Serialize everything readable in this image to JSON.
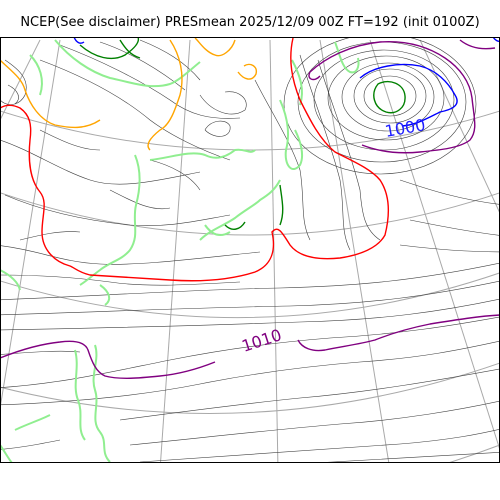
{
  "title": "NCEP(See disclaimer) PRESmean 2025/12/09 00Z FT=192 (init 0100Z)",
  "map": {
    "pressure_labels": [
      {
        "text": "1000",
        "color": "#1f1fff"
      },
      {
        "text": "1010",
        "color": "#800080"
      }
    ],
    "colors": {
      "isobar": "#404040",
      "coast": "#90ee90",
      "graticule": "#a9a9a9",
      "contour_1000": "#0000ff",
      "contour_1004": "#800080",
      "contour_red": "#ff0000",
      "contour_orange": "#ffa500",
      "low_center": "#008000"
    }
  }
}
